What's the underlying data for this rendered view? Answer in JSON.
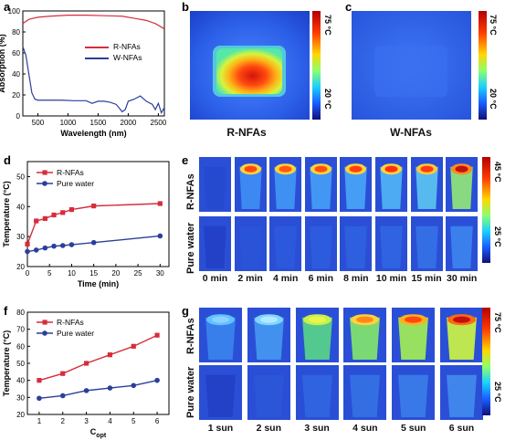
{
  "panels": {
    "a": {
      "label": "a",
      "legend": [
        "R-NFAs",
        "W-NFAs"
      ],
      "colors": {
        "R-NFAs": "#d62d3c",
        "W-NFAs": "#2b3f9a"
      }
    },
    "b": {
      "label": "b",
      "caption": "R-NFAs",
      "cbar_max": "75 °C",
      "cbar_min": "20 °C"
    },
    "c": {
      "label": "c",
      "caption": "W-NFAs",
      "cbar_max": "75 °C",
      "cbar_min": "20 °C"
    },
    "d": {
      "label": "d",
      "legend": [
        "R-NFAs",
        "Pure water"
      ]
    },
    "e": {
      "label": "e",
      "row_labels": [
        "R-NFAs",
        "Pure water"
      ],
      "times": [
        "0 min",
        "2 min",
        "4 min",
        "6 min",
        "8 min",
        "10 min",
        "15 min",
        "30 min"
      ],
      "cbar_max": "45 °C",
      "cbar_min": "25 °C"
    },
    "f": {
      "label": "f",
      "legend": [
        "R-NFAs",
        "Pure water"
      ]
    },
    "g": {
      "label": "g",
      "row_labels": [
        "R-NFAs",
        "Pure water"
      ],
      "suns": [
        "1 sun",
        "2 sun",
        "3 sun",
        "4 sun",
        "5 sun",
        "6 sun"
      ],
      "cbar_max": "75 °C",
      "cbar_min": "25 °C"
    }
  },
  "chart_data": [
    {
      "panel": "a",
      "type": "line",
      "xlabel": "Wavelength (nm)",
      "ylabel": "Absorption (%)",
      "xlim": [
        250,
        2600
      ],
      "ylim": [
        0,
        100
      ],
      "xticks": [
        500,
        1000,
        1500,
        2000,
        2500
      ],
      "yticks": [
        0,
        20,
        40,
        60,
        80,
        100
      ],
      "series": [
        {
          "name": "R-NFAs",
          "x": [
            250,
            350,
            500,
            700,
            1000,
            1300,
            1600,
            1900,
            2100,
            2300,
            2450,
            2600
          ],
          "values": [
            88,
            92,
            94,
            95,
            96,
            96,
            95.5,
            95,
            93,
            91,
            88,
            83
          ]
        },
        {
          "name": "W-NFAs",
          "x": [
            250,
            300,
            350,
            400,
            450,
            500,
            700,
            900,
            1100,
            1300,
            1400,
            1500,
            1600,
            1700,
            1800,
            1900,
            1950,
            2000,
            2100,
            2200,
            2300,
            2400,
            2450,
            2500,
            2550,
            2600
          ],
          "values": [
            66,
            58,
            40,
            22,
            16,
            15,
            15,
            15,
            14.5,
            14.5,
            12,
            14,
            14,
            13,
            11,
            4,
            6,
            14,
            16,
            19,
            14,
            11,
            6,
            12,
            3,
            8
          ]
        }
      ]
    },
    {
      "panel": "d",
      "type": "line",
      "xlabel": "Time (min)",
      "ylabel": "Temperature (°C)",
      "xlim": [
        0,
        32
      ],
      "ylim": [
        20,
        55
      ],
      "xticks": [
        0,
        5,
        10,
        15,
        20,
        25,
        30
      ],
      "yticks": [
        20,
        30,
        40,
        50
      ],
      "series": [
        {
          "name": "R-NFAs",
          "x": [
            0,
            2,
            4,
            6,
            8,
            10,
            15,
            30
          ],
          "values": [
            27.5,
            35.2,
            36.0,
            37.2,
            38.0,
            39.0,
            40.2,
            41.0
          ]
        },
        {
          "name": "Pure water",
          "x": [
            0,
            2,
            4,
            6,
            8,
            10,
            15,
            30
          ],
          "values": [
            25.0,
            25.5,
            26.2,
            26.8,
            27.0,
            27.3,
            28.0,
            30.2
          ]
        }
      ]
    },
    {
      "panel": "f",
      "type": "line",
      "xlabel": "C_opt",
      "ylabel": "Temperature (°C)",
      "xlim": [
        0.5,
        6.5
      ],
      "ylim": [
        20,
        80
      ],
      "xticks": [
        1,
        2,
        3,
        4,
        5,
        6
      ],
      "yticks": [
        20,
        30,
        40,
        50,
        60,
        70,
        80
      ],
      "series": [
        {
          "name": "R-NFAs",
          "x": [
            1,
            2,
            3,
            4,
            5,
            6
          ],
          "values": [
            40.0,
            44.0,
            50.0,
            55.0,
            60.0,
            66.5
          ]
        },
        {
          "name": "Pure water",
          "x": [
            1,
            2,
            3,
            4,
            5,
            6
          ],
          "values": [
            29.5,
            31.0,
            34.0,
            35.5,
            37.0,
            40.0
          ]
        }
      ]
    }
  ]
}
